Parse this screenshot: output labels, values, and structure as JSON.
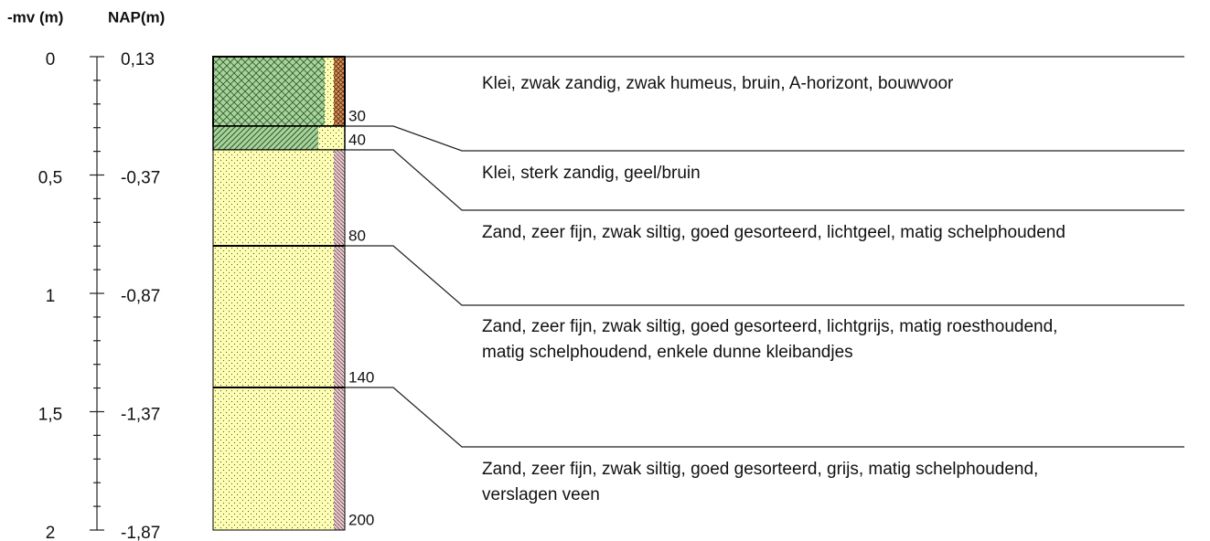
{
  "header": {
    "depth_label": "-mv (m)",
    "nap_label": "NAP(m)"
  },
  "scale": [
    {
      "depth": "0",
      "nap": "0,13"
    },
    {
      "depth": "0,5",
      "nap": "-0,37"
    },
    {
      "depth": "1",
      "nap": "-0,87"
    },
    {
      "depth": "1,5",
      "nap": "-1,37"
    },
    {
      "depth": "2",
      "nap": "-1,87"
    }
  ],
  "layers": [
    {
      "bottom": "30",
      "description": [
        "Klei, zwak zandig, zwak humeus, bruin, A-horizont, bouwvoor"
      ]
    },
    {
      "bottom": "40",
      "description": [
        "Klei, sterk zandig, geel/bruin"
      ]
    },
    {
      "bottom": "80",
      "description": [
        "Zand, zeer fijn, zwak siltig, goed gesorteerd, lichtgeel, matig schelphoudend"
      ]
    },
    {
      "bottom": "140",
      "description": [
        "Zand, zeer fijn, zwak siltig, goed gesorteerd, lichtgrijs, matig roesthoudend,",
        "matig schelphoudend, enkele dunne kleibandjes"
      ]
    },
    {
      "bottom": "200",
      "description": [
        "Zand, zeer fijn, zwak siltig, goed gesorteerd, grijs, matig schelphoudend,",
        "verslagen veen"
      ]
    }
  ]
}
